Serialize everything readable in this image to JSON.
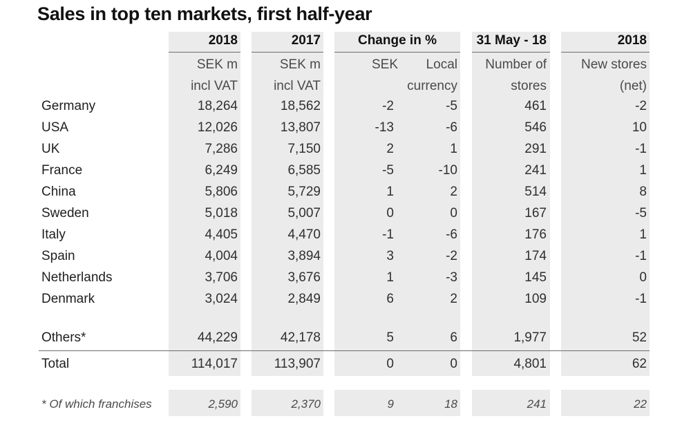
{
  "title": "Sales in top ten markets, first half-year",
  "columns": [
    {
      "header": "2018",
      "sub1": "SEK m",
      "sub2": "incl VAT"
    },
    {
      "header": "2017",
      "sub1": "SEK m",
      "sub2": "incl VAT"
    },
    {
      "header": "Change in %",
      "sub_sek": "SEK",
      "sub_local1": "Local",
      "sub_local2": "currency"
    },
    {
      "header": "31 May - 18",
      "sub1": "Number of",
      "sub2": "stores"
    },
    {
      "header": "2018",
      "sub1": "New stores",
      "sub2": "(net)"
    }
  ],
  "rows": [
    {
      "market": "Germany",
      "v2018": "18,264",
      "v2017": "18,562",
      "sek": "-2",
      "local": "-5",
      "stores": "461",
      "new": "-2"
    },
    {
      "market": "USA",
      "v2018": "12,026",
      "v2017": "13,807",
      "sek": "-13",
      "local": "-6",
      "stores": "546",
      "new": "10"
    },
    {
      "market": "UK",
      "v2018": "7,286",
      "v2017": "7,150",
      "sek": "2",
      "local": "1",
      "stores": "291",
      "new": "-1"
    },
    {
      "market": "France",
      "v2018": "6,249",
      "v2017": "6,585",
      "sek": "-5",
      "local": "-10",
      "stores": "241",
      "new": "1"
    },
    {
      "market": "China",
      "v2018": "5,806",
      "v2017": "5,729",
      "sek": "1",
      "local": "2",
      "stores": "514",
      "new": "8"
    },
    {
      "market": "Sweden",
      "v2018": "5,018",
      "v2017": "5,007",
      "sek": "0",
      "local": "0",
      "stores": "167",
      "new": "-5"
    },
    {
      "market": "Italy",
      "v2018": "4,405",
      "v2017": "4,470",
      "sek": "-1",
      "local": "-6",
      "stores": "176",
      "new": "1"
    },
    {
      "market": "Spain",
      "v2018": "4,004",
      "v2017": "3,894",
      "sek": "3",
      "local": "-2",
      "stores": "174",
      "new": "-1"
    },
    {
      "market": "Netherlands",
      "v2018": "3,706",
      "v2017": "3,676",
      "sek": "1",
      "local": "-3",
      "stores": "145",
      "new": "0"
    },
    {
      "market": "Denmark",
      "v2018": "3,024",
      "v2017": "2,849",
      "sek": "6",
      "local": "2",
      "stores": "109",
      "new": "-1"
    }
  ],
  "others": {
    "market": "Others*",
    "v2018": "44,229",
    "v2017": "42,178",
    "sek": "5",
    "local": "6",
    "stores": "1,977",
    "new": "52"
  },
  "total": {
    "market": "Total",
    "v2018": "114,017",
    "v2017": "113,907",
    "sek": "0",
    "local": "0",
    "stores": "4,801",
    "new": "62"
  },
  "franchises": {
    "market": "* Of which franchises",
    "v2018": "2,590",
    "v2017": "2,370",
    "sek": "9",
    "local": "18",
    "stores": "241",
    "new": "22"
  }
}
